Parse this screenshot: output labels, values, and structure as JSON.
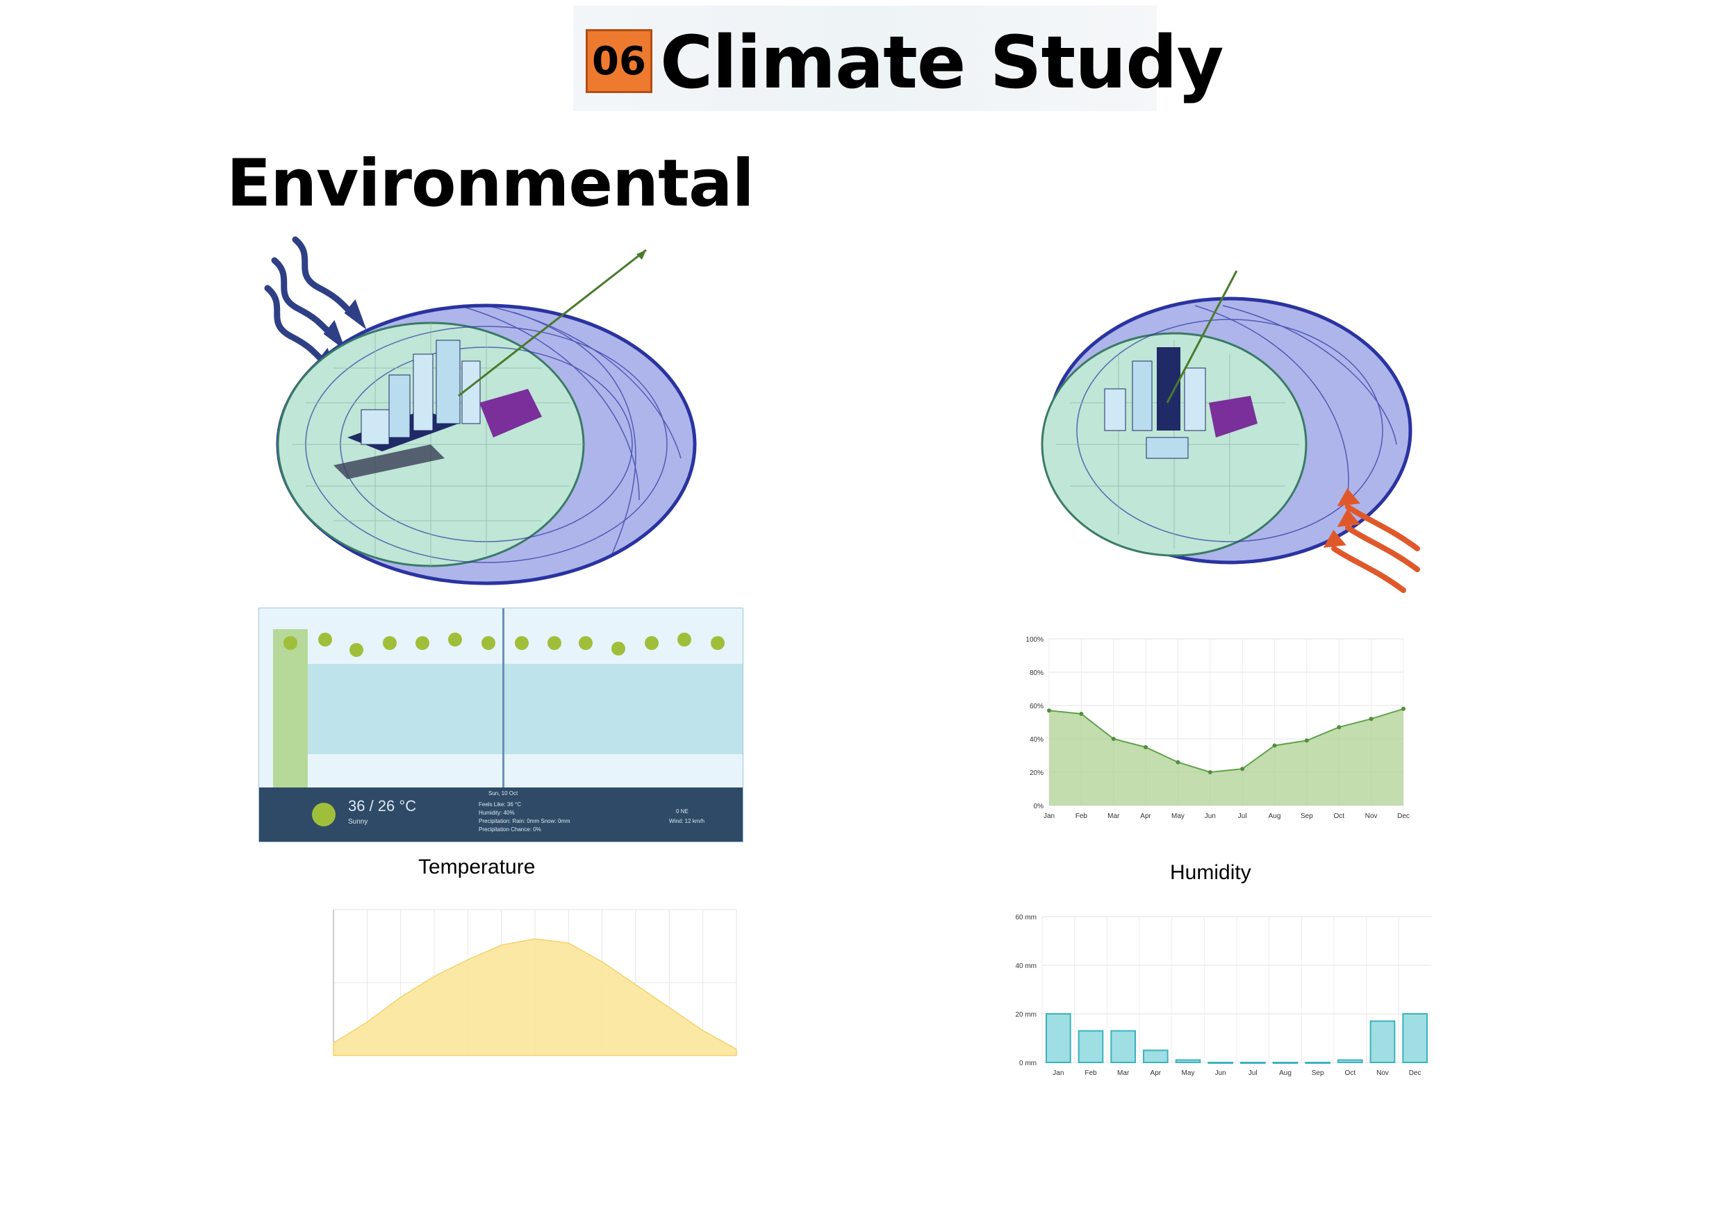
{
  "header": {
    "number": "06",
    "title": "Climate Study"
  },
  "section_title": "Environmental",
  "weather": {
    "temp": "36 / 26 °C",
    "condition": "Sunny",
    "date": "Sun, 10 Oct",
    "details": [
      "Feels Like: 36 °C",
      "Humidity: 40%",
      "Precipitation: Rain: 0mm Snow: 0mm",
      "Precipitation Chance: 0%"
    ],
    "wind": [
      "0 NE",
      "Wind: 12 km/h"
    ],
    "colors": {
      "panel": "#2e4a66",
      "band": "#cfe7ee",
      "sun": "#9fbf3a"
    }
  },
  "captions": {
    "temperature": "Temperature",
    "humidity": "Humidity"
  },
  "chart_data": [
    {
      "type": "area",
      "x": [
        1,
        2,
        3,
        4,
        5,
        6,
        7,
        8,
        9,
        10,
        11,
        12
      ],
      "values": [
        57,
        55,
        40,
        35,
        26,
        20,
        22,
        36,
        39,
        47,
        52,
        58
      ],
      "x_tick_labels": [
        "Jan",
        "Feb",
        "Mar",
        "Apr",
        "May",
        "Jun",
        "Jul",
        "Aug",
        "Sep",
        "Oct",
        "Nov",
        "Dec"
      ],
      "y_tick_labels": [
        "0%",
        "20%",
        "40%",
        "60%",
        "80%",
        "100%"
      ],
      "ylim": [
        0,
        100
      ],
      "grid": true,
      "color": "#a9cf8c"
    },
    {
      "type": "area",
      "x": [
        0,
        1,
        2,
        3,
        4,
        5,
        6,
        7,
        8,
        9,
        10,
        11,
        12
      ],
      "values": [
        0.6,
        1.6,
        2.8,
        3.8,
        4.6,
        5.3,
        5.6,
        5.4,
        4.5,
        3.4,
        2.3,
        1.2,
        0.3
      ],
      "ylim": [
        0,
        7
      ],
      "grid": true,
      "color": "#fbe59a"
    },
    {
      "type": "bar",
      "categories": [
        "Jan",
        "Feb",
        "Mar",
        "Apr",
        "May",
        "Jun",
        "Jul",
        "Aug",
        "Sep",
        "Oct",
        "Nov",
        "Dec"
      ],
      "values": [
        20,
        13,
        13,
        5,
        1,
        0,
        0,
        0,
        0,
        1,
        17,
        20
      ],
      "y_tick_labels": [
        "0 mm",
        "20 mm",
        "40 mm",
        "60 mm"
      ],
      "ylim": [
        0,
        60
      ],
      "grid": true,
      "color": "#7fd3d9"
    }
  ]
}
